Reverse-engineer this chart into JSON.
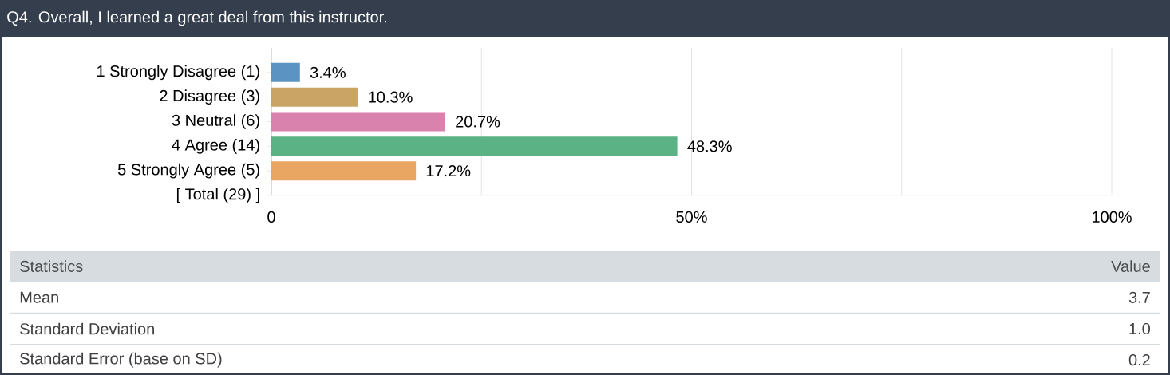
{
  "chart_data": {
    "type": "bar",
    "orientation": "horizontal",
    "title": "Q4. Overall, I learned a great deal from this instructor.",
    "categories": [
      "1 Strongly Disagree (1)",
      "2 Disagree (3)",
      "3 Neutral (6)",
      "4 Agree (14)",
      "5 Strongly Agree (5)",
      "[ Total (29) ]"
    ],
    "values": [
      3.4,
      10.3,
      20.7,
      48.3,
      17.2,
      null
    ],
    "colors": [
      "#5b93c3",
      "#c9a464",
      "#d982ad",
      "#5bb285",
      "#e9a562",
      "#000000"
    ],
    "value_labels": [
      "3.4%",
      "10.3%",
      "20.7%",
      "48.3%",
      "17.2%",
      null
    ],
    "xlim": [
      0,
      100
    ],
    "xticks": [
      0,
      {
        "value": 25,
        "label": null
      },
      {
        "value": 50,
        "label": "50%"
      },
      {
        "value": 75,
        "label": null
      },
      {
        "value": 100,
        "label": "100%"
      }
    ],
    "grid": "x",
    "annotations": [
      "Statistics",
      "Value",
      "Mean",
      "3.7",
      "Standard Deviation",
      "1.0",
      "Standard Error (base on SD)",
      "0.2"
    ]
  }
}
